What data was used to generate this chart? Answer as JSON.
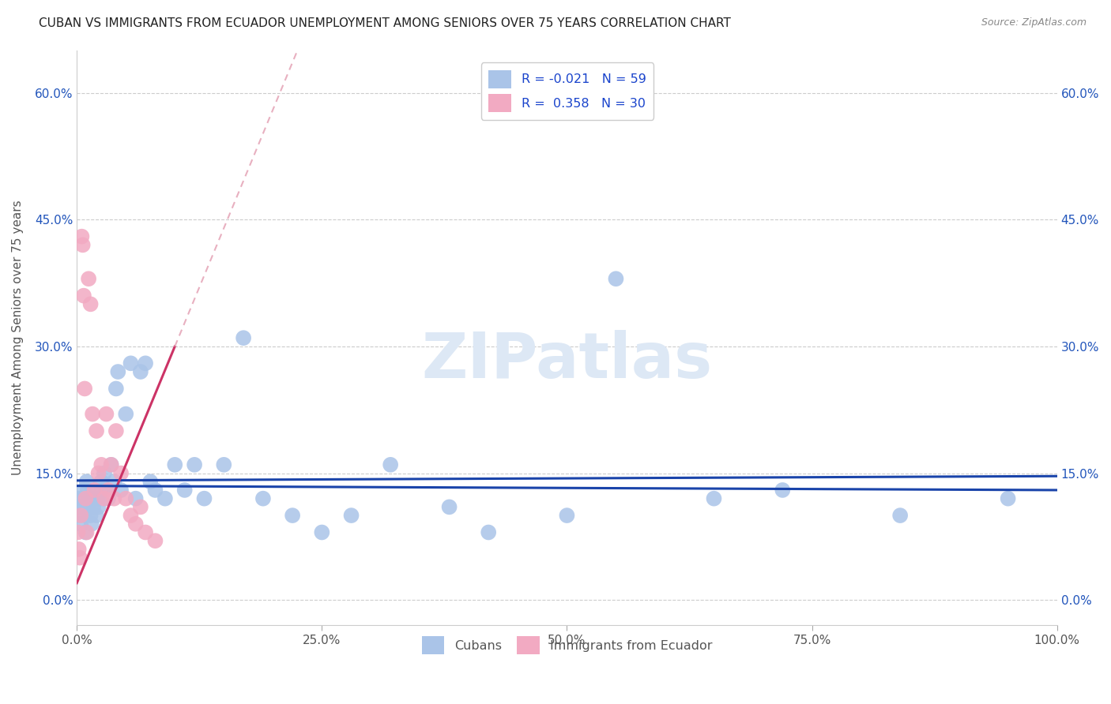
{
  "title": "CUBAN VS IMMIGRANTS FROM ECUADOR UNEMPLOYMENT AMONG SENIORS OVER 75 YEARS CORRELATION CHART",
  "source": "Source: ZipAtlas.com",
  "ylabel": "Unemployment Among Seniors over 75 years",
  "watermark": "ZIPatlas",
  "cubans_R": -0.021,
  "cubans_N": 59,
  "ecuador_R": 0.358,
  "ecuador_N": 30,
  "blue_color": "#aac4e8",
  "pink_color": "#f2aac2",
  "blue_line_color": "#1a44aa",
  "pink_line_color": "#cc3366",
  "pink_dashed_color": "#e8b0c0",
  "xlim": [
    0.0,
    1.0
  ],
  "ylim": [
    -0.03,
    0.65
  ],
  "x_tick_vals": [
    0.0,
    0.25,
    0.5,
    0.75,
    1.0
  ],
  "x_tick_labels": [
    "0.0%",
    "25.0%",
    "50.0%",
    "75.0%",
    "100.0%"
  ],
  "y_tick_vals": [
    0.0,
    0.15,
    0.3,
    0.45,
    0.6
  ],
  "y_tick_labels": [
    "0.0%",
    "15.0%",
    "30.0%",
    "45.0%",
    "60.0%"
  ],
  "cubans_x": [
    0.001,
    0.002,
    0.003,
    0.004,
    0.005,
    0.006,
    0.007,
    0.008,
    0.009,
    0.01,
    0.011,
    0.012,
    0.013,
    0.014,
    0.015,
    0.016,
    0.017,
    0.018,
    0.02,
    0.021,
    0.022,
    0.025,
    0.026,
    0.027,
    0.028,
    0.03,
    0.032,
    0.035,
    0.038,
    0.04,
    0.042,
    0.045,
    0.05,
    0.055,
    0.06,
    0.065,
    0.07,
    0.075,
    0.08,
    0.09,
    0.1,
    0.11,
    0.12,
    0.13,
    0.15,
    0.17,
    0.19,
    0.22,
    0.25,
    0.28,
    0.32,
    0.38,
    0.42,
    0.5,
    0.55,
    0.65,
    0.72,
    0.84,
    0.95
  ],
  "cubans_y": [
    0.12,
    0.11,
    0.1,
    0.09,
    0.12,
    0.11,
    0.13,
    0.1,
    0.08,
    0.14,
    0.13,
    0.11,
    0.12,
    0.1,
    0.09,
    0.12,
    0.11,
    0.13,
    0.1,
    0.12,
    0.11,
    0.14,
    0.13,
    0.12,
    0.15,
    0.13,
    0.12,
    0.16,
    0.14,
    0.25,
    0.27,
    0.13,
    0.22,
    0.28,
    0.12,
    0.27,
    0.28,
    0.14,
    0.13,
    0.12,
    0.16,
    0.13,
    0.16,
    0.12,
    0.16,
    0.31,
    0.12,
    0.1,
    0.08,
    0.1,
    0.16,
    0.11,
    0.08,
    0.1,
    0.38,
    0.12,
    0.13,
    0.1,
    0.12
  ],
  "ecuador_x": [
    0.001,
    0.002,
    0.003,
    0.004,
    0.005,
    0.006,
    0.007,
    0.008,
    0.009,
    0.01,
    0.012,
    0.014,
    0.016,
    0.018,
    0.02,
    0.022,
    0.025,
    0.028,
    0.03,
    0.032,
    0.035,
    0.038,
    0.04,
    0.045,
    0.05,
    0.055,
    0.06,
    0.065,
    0.07,
    0.08
  ],
  "ecuador_y": [
    0.08,
    0.06,
    0.05,
    0.1,
    0.43,
    0.42,
    0.36,
    0.25,
    0.12,
    0.08,
    0.38,
    0.35,
    0.22,
    0.13,
    0.2,
    0.15,
    0.16,
    0.12,
    0.22,
    0.13,
    0.16,
    0.12,
    0.2,
    0.15,
    0.12,
    0.1,
    0.09,
    0.11,
    0.08,
    0.07
  ]
}
